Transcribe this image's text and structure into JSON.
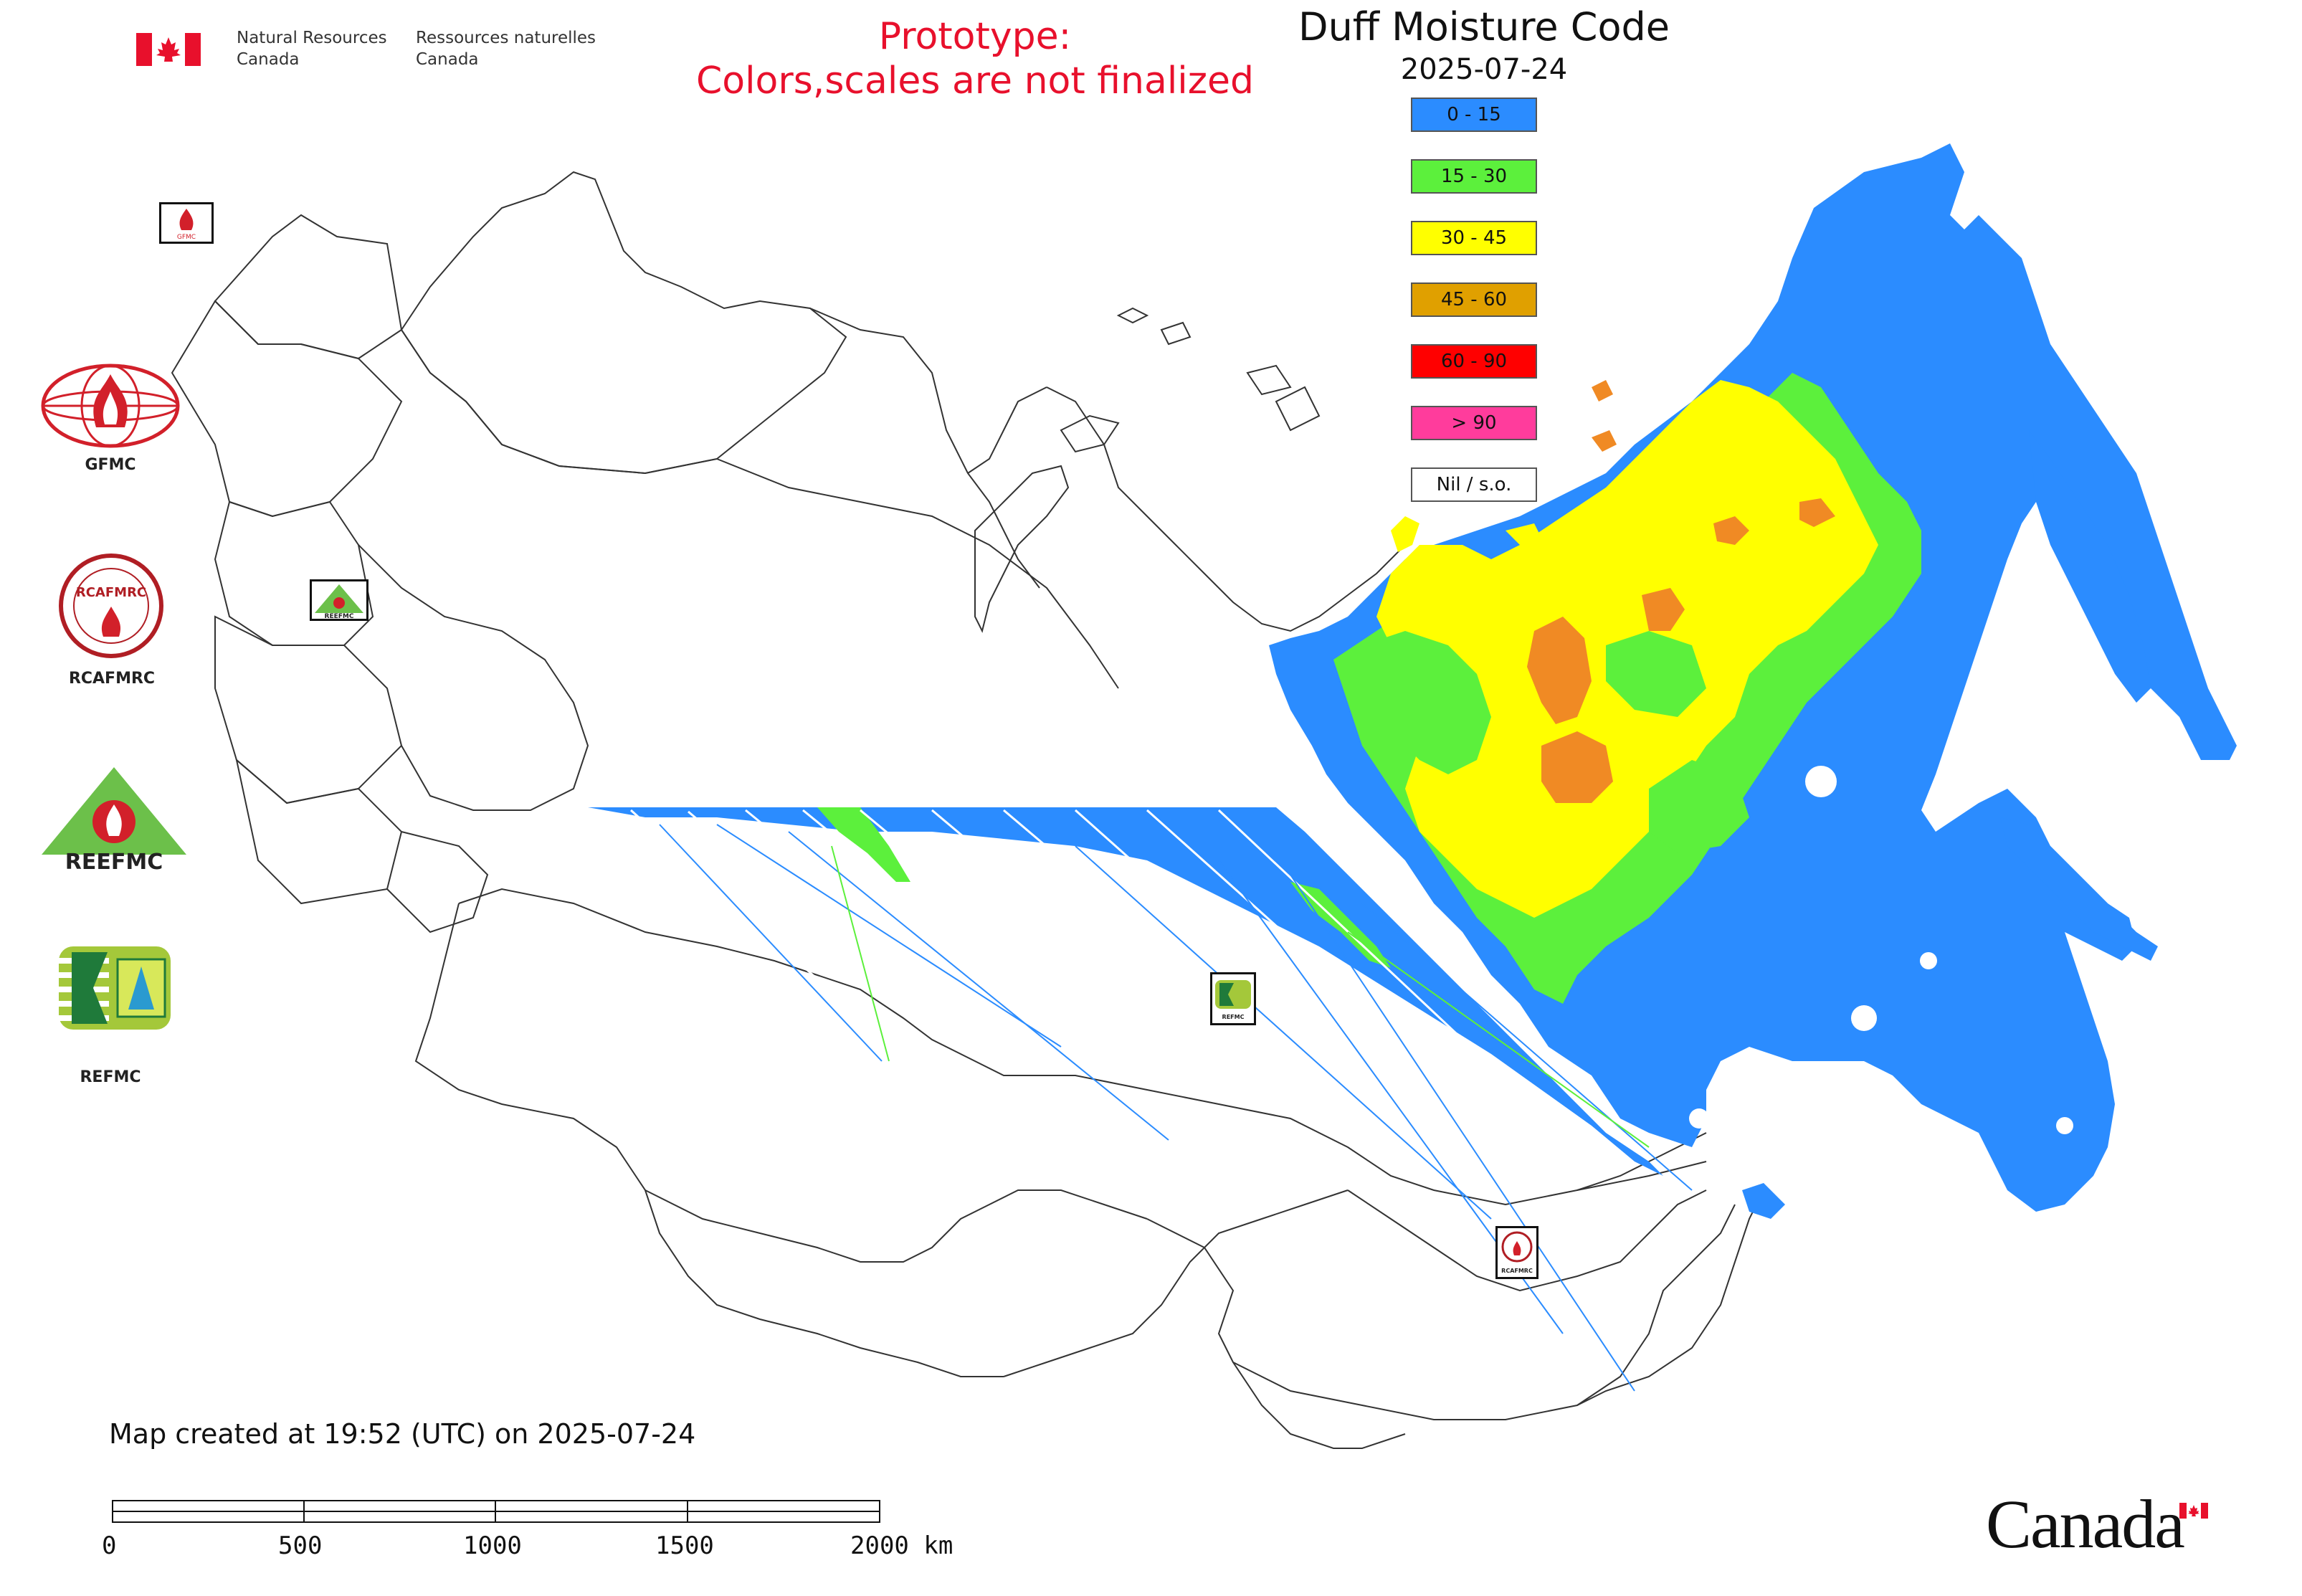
{
  "header": {
    "agency_en": "Natural Resources\nCanada",
    "agency_fr": "Ressources naturelles\nCanada",
    "prototype_line1": "Prototype:",
    "prototype_line2": "Colors,scales are not finalized"
  },
  "map": {
    "title": "Duff Moisture Code",
    "date": "2025-07-24",
    "created_note": "Map created at 19:52 (UTC) on 2025-07-24"
  },
  "legend": {
    "items": [
      {
        "label": "0 - 15",
        "color": "#2b8cff"
      },
      {
        "label": "15 - 30",
        "color": "#5cf03c"
      },
      {
        "label": "30 - 45",
        "color": "#ffff00"
      },
      {
        "label": "45 - 60",
        "color": "#e0a000"
      },
      {
        "label": "60 - 90",
        "color": "#ff0000"
      },
      {
        "label": "> 90",
        "color": "#ff3c9c"
      },
      {
        "label": "Nil / s.o.",
        "color": "#ffffff"
      }
    ]
  },
  "logos": [
    {
      "name": "GFMC",
      "label": "GFMC"
    },
    {
      "name": "RCAFMRC",
      "label": "RCAFMRC"
    },
    {
      "name": "REEFMC",
      "label": "REEFMC"
    },
    {
      "name": "REFMC",
      "label": "REFMC"
    }
  ],
  "map_markers": [
    {
      "label": "GFMC"
    },
    {
      "label": "REEFMC"
    },
    {
      "label": "REFMC"
    },
    {
      "label": "RCAFMRC"
    }
  ],
  "scale": {
    "ticks": [
      "0",
      "500",
      "1000",
      "1500",
      "2000 km"
    ]
  },
  "footer": {
    "wordmark": "Canada"
  },
  "colors": {
    "blue": "#2b8cff",
    "green": "#5cf03c",
    "yellow": "#ffff00",
    "orange": "#f08a24",
    "prototype_red": "#e8102c"
  }
}
